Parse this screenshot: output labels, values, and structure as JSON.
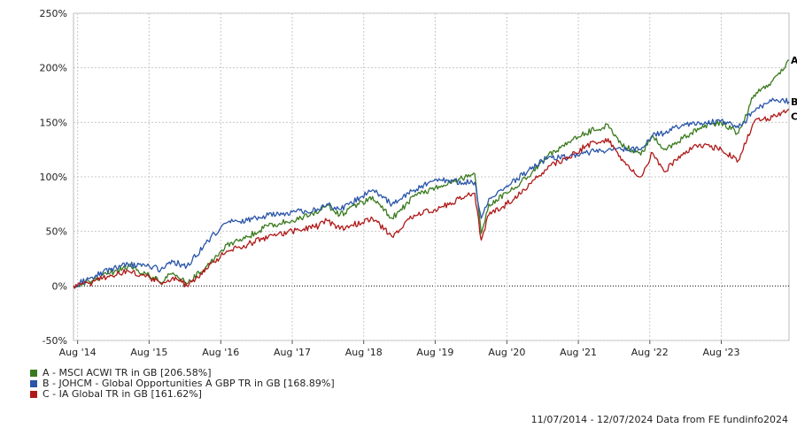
{
  "chart_data": {
    "type": "line",
    "ylim": [
      -50,
      250
    ],
    "y_ticks": [
      "250%",
      "200%",
      "150%",
      "100%",
      "50%",
      "0%",
      "-50%"
    ],
    "x_ticks": [
      "Aug '14",
      "Aug '15",
      "Aug '16",
      "Aug '17",
      "Aug '18",
      "Aug '19",
      "Aug '20",
      "Aug '21",
      "Aug '22",
      "Aug '23"
    ],
    "x_range": [
      "2014-07-11",
      "2024-07-12"
    ],
    "grid": true,
    "series": [
      {
        "name": "A - MSCI ACWI TR in GB [206.58%]",
        "end_label": "A",
        "color": "#3a7a1e",
        "x": [
          "2014-07-11",
          "2014-10-15",
          "2015-01-15",
          "2015-04-15",
          "2015-08-01",
          "2015-09-30",
          "2015-12-01",
          "2016-02-10",
          "2016-06-30",
          "2016-09-01",
          "2016-12-15",
          "2017-04-01",
          "2017-08-01",
          "2017-12-15",
          "2018-01-25",
          "2018-04-01",
          "2018-09-15",
          "2018-12-24",
          "2019-04-15",
          "2019-08-01",
          "2019-12-31",
          "2020-02-19",
          "2020-03-23",
          "2020-05-01",
          "2020-08-01",
          "2020-11-15",
          "2021-03-01",
          "2021-06-15",
          "2021-09-06",
          "2021-12-31",
          "2022-03-08",
          "2022-06-16",
          "2022-08-15",
          "2022-10-12",
          "2023-01-15",
          "2023-04-15",
          "2023-08-01",
          "2023-10-27",
          "2024-01-15",
          "2024-04-19",
          "2024-07-12"
        ],
        "values": [
          0,
          5,
          12,
          18,
          10,
          3,
          12,
          2,
          25,
          38,
          45,
          55,
          60,
          68,
          74,
          65,
          82,
          62,
          82,
          90,
          100,
          103,
          48,
          75,
          85,
          100,
          120,
          132,
          140,
          148,
          130,
          120,
          138,
          125,
          135,
          145,
          150,
          140,
          175,
          188,
          207
        ]
      },
      {
        "name": "B - JOHCM - Global Opportunities A GBP TR in GB [168.89%]",
        "end_label": "B",
        "color": "#2a55a8",
        "x": [
          "2014-07-11",
          "2014-10-15",
          "2015-01-15",
          "2015-04-15",
          "2015-08-01",
          "2015-09-30",
          "2015-12-01",
          "2016-02-10",
          "2016-06-30",
          "2016-09-01",
          "2016-12-15",
          "2017-04-01",
          "2017-08-01",
          "2017-12-15",
          "2018-01-25",
          "2018-04-01",
          "2018-09-15",
          "2018-12-24",
          "2019-04-15",
          "2019-08-01",
          "2019-12-31",
          "2020-02-19",
          "2020-03-23",
          "2020-05-01",
          "2020-08-01",
          "2020-11-15",
          "2021-03-01",
          "2021-06-15",
          "2021-09-06",
          "2021-12-31",
          "2022-03-08",
          "2022-06-16",
          "2022-08-15",
          "2022-10-12",
          "2023-01-15",
          "2023-04-15",
          "2023-08-01",
          "2023-10-27",
          "2024-01-15",
          "2024-04-19",
          "2024-07-12"
        ],
        "values": [
          0,
          8,
          15,
          20,
          18,
          15,
          22,
          18,
          48,
          58,
          60,
          65,
          68,
          70,
          75,
          70,
          88,
          75,
          88,
          98,
          95,
          95,
          62,
          80,
          92,
          105,
          118,
          118,
          122,
          125,
          125,
          125,
          138,
          140,
          148,
          148,
          152,
          145,
          160,
          172,
          169
        ]
      },
      {
        "name": "C - IA Global TR in GB [161.62%]",
        "end_label": "C",
        "color": "#b01818",
        "x": [
          "2014-07-11",
          "2014-10-15",
          "2015-01-15",
          "2015-04-15",
          "2015-08-01",
          "2015-09-30",
          "2015-12-01",
          "2016-02-10",
          "2016-06-30",
          "2016-09-01",
          "2016-12-15",
          "2017-04-01",
          "2017-08-01",
          "2017-12-15",
          "2018-01-25",
          "2018-04-01",
          "2018-09-15",
          "2018-12-24",
          "2019-04-15",
          "2019-08-01",
          "2019-12-31",
          "2020-02-19",
          "2020-03-23",
          "2020-05-01",
          "2020-08-01",
          "2020-11-15",
          "2021-03-01",
          "2021-06-15",
          "2021-09-06",
          "2021-12-31",
          "2022-03-08",
          "2022-06-16",
          "2022-08-15",
          "2022-10-12",
          "2023-01-15",
          "2023-04-15",
          "2023-08-01",
          "2023-10-27",
          "2024-01-15",
          "2024-04-19",
          "2024-07-12"
        ],
        "values": [
          0,
          3,
          10,
          14,
          8,
          2,
          8,
          0,
          22,
          32,
          38,
          45,
          50,
          55,
          60,
          52,
          62,
          45,
          65,
          70,
          82,
          85,
          42,
          65,
          75,
          90,
          110,
          118,
          128,
          135,
          115,
          100,
          122,
          105,
          120,
          130,
          125,
          115,
          150,
          155,
          162
        ]
      }
    ]
  },
  "footer": "11/07/2014 - 12/07/2024 Data from FE fundinfo2024"
}
